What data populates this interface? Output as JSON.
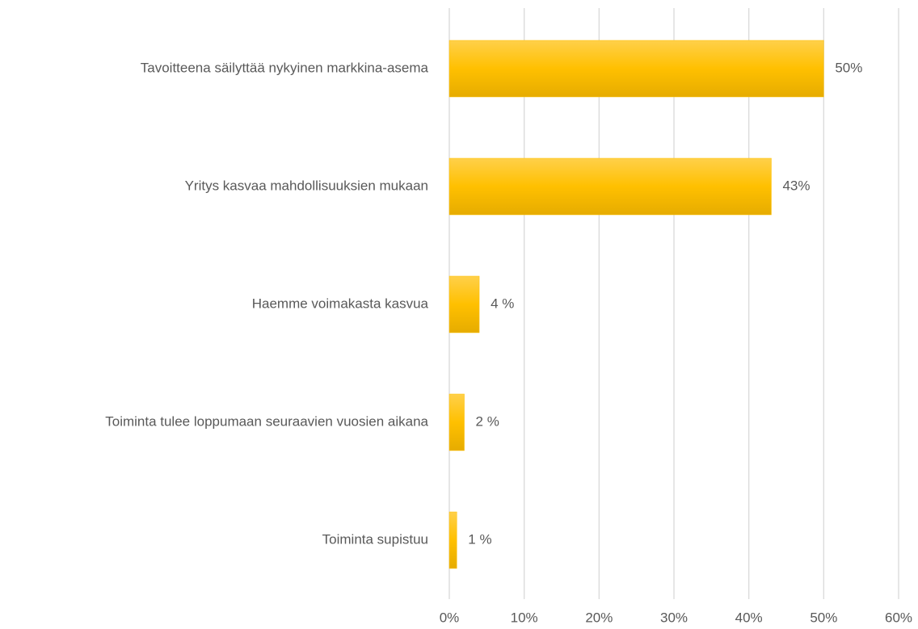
{
  "chart_data": {
    "type": "hbar",
    "categories": [
      "Tavoitteena säilyttää nykyinen markkina-asema",
      "Yritys kasvaa mahdollisuuksien mukaan",
      "Haemme voimakasta kasvua",
      "Toiminta tulee loppumaan seuraavien vuosien aikana",
      "Toiminta supistuu"
    ],
    "values": [
      50,
      43,
      4,
      2,
      1
    ],
    "value_labels": [
      "50%",
      "43%",
      "4 %",
      "2 %",
      "1 %"
    ],
    "color": "#ffc000",
    "xlim": [
      0,
      60
    ],
    "xticks": [
      {
        "value": 0,
        "label": "0%"
      },
      {
        "value": 10,
        "label": "10%"
      },
      {
        "value": 20,
        "label": "20%"
      },
      {
        "value": 30,
        "label": "30%"
      },
      {
        "value": 40,
        "label": "40%"
      },
      {
        "value": 50,
        "label": "50%"
      },
      {
        "value": 60,
        "label": "60%"
      }
    ],
    "grid": true
  }
}
